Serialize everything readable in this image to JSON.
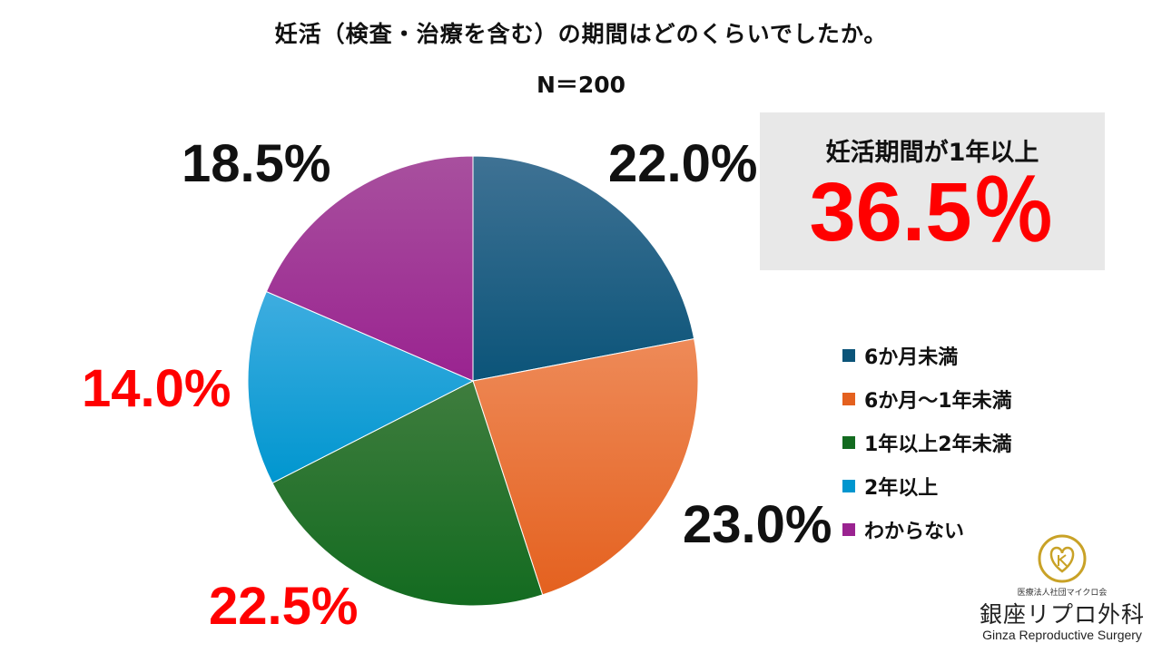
{
  "chart_data": {
    "type": "pie",
    "title": "妊活（検査・治療を含む）の期間はどのくらいでしたか。",
    "subtitle": "N＝200",
    "legend_position": "right",
    "start_angle": "top, clockwise",
    "slices": [
      {
        "label": "6か月未満",
        "value": 22.0,
        "display": "22.0%",
        "color_top": "#3f7294",
        "color_bottom": "#0b5479",
        "label_color": "#111111"
      },
      {
        "label": "6か月～1年未満",
        "value": 23.0,
        "display": "23.0%",
        "color_top": "#ee8a58",
        "color_bottom": "#e4611f",
        "label_color": "#111111"
      },
      {
        "label": "1年以上2年未満",
        "value": 22.5,
        "display": "22.5%",
        "color_top": "#3f7d3e",
        "color_bottom": "#136b20",
        "label_color": "#ff0000"
      },
      {
        "label": "2年以上",
        "value": 14.0,
        "display": "14.0%",
        "color_top": "#3eade0",
        "color_bottom": "#0096cf",
        "label_color": "#ff0000"
      },
      {
        "label": "わからない",
        "value": 18.5,
        "display": "18.5%",
        "color_top": "#a8509e",
        "color_bottom": "#9a2390",
        "label_color": "#111111"
      }
    ]
  },
  "callout": {
    "label": "妊活期間が1年以上",
    "value": "36.5％",
    "value_color": "#ff0000"
  },
  "logo": {
    "org": "医療法人社団マイクロ会",
    "name": "銀座リプロ外科",
    "name_en": "Ginza Reproductive Surgery",
    "color": "#c9a227"
  }
}
